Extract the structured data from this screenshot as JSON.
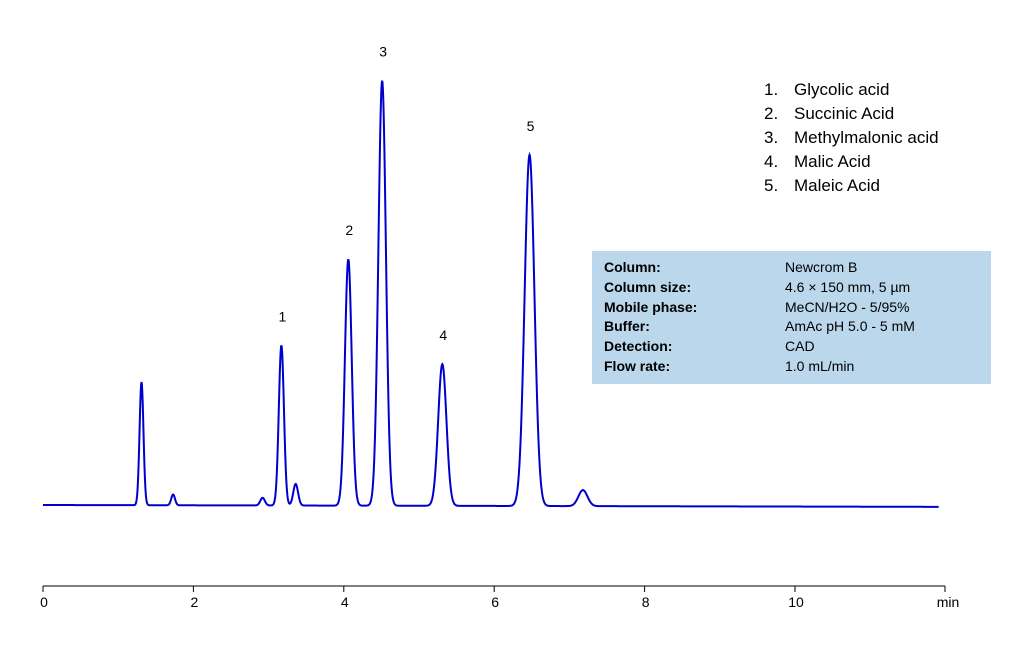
{
  "chart_data": {
    "type": "line",
    "xlabel": "min",
    "xlim": [
      0,
      12
    ],
    "x_ticks": [
      0,
      2,
      4,
      6,
      8,
      10
    ],
    "x_tick_labels": [
      "0",
      "2",
      "4",
      "6",
      "8",
      "10"
    ],
    "ylim": [
      0,
      1
    ],
    "grid": false,
    "legend_position": "top-right",
    "line_color": "#0000cc",
    "info_box_color": "#bad7ec",
    "baseline": 0.0,
    "drift_end": -0.006,
    "peaks": [
      {
        "rt": 1.31,
        "height": 0.4,
        "sigma": 0.026,
        "label": ""
      },
      {
        "rt": 1.73,
        "height": 0.035,
        "sigma": 0.025,
        "label": ""
      },
      {
        "rt": 2.92,
        "height": 0.025,
        "sigma": 0.03,
        "label": ""
      },
      {
        "rt": 3.17,
        "height": 0.52,
        "sigma": 0.034,
        "label": "1"
      },
      {
        "rt": 3.36,
        "height": 0.07,
        "sigma": 0.032,
        "label": ""
      },
      {
        "rt": 4.06,
        "height": 0.8,
        "sigma": 0.045,
        "label": "2"
      },
      {
        "rt": 4.51,
        "height": 1.38,
        "sigma": 0.05,
        "label": "3"
      },
      {
        "rt": 5.31,
        "height": 0.46,
        "sigma": 0.055,
        "label": "4"
      },
      {
        "rt": 6.47,
        "height": 1.14,
        "sigma": 0.065,
        "label": "5"
      },
      {
        "rt": 7.18,
        "height": 0.052,
        "sigma": 0.06,
        "label": ""
      }
    ],
    "compounds": [
      {
        "num": "1.",
        "name": "Glycolic acid"
      },
      {
        "num": "2.",
        "name": "Succinic Acid"
      },
      {
        "num": "3.",
        "name": "Methylmalonic acid"
      },
      {
        "num": "4.",
        "name": "Malic Acid"
      },
      {
        "num": "5.",
        "name": "Maleic Acid"
      }
    ]
  },
  "conditions": [
    {
      "key": "Column:",
      "value": "Newcrom B"
    },
    {
      "key": "Column size:",
      "value": "4.6 × 150 mm, 5 µm"
    },
    {
      "key": "Mobile phase:",
      "value": "MeCN/H2O - 5/95%"
    },
    {
      "key": "Buffer:",
      "value": "AmAc  pH 5.0 - 5 mM"
    },
    {
      "key": "Detection:",
      "value": "CAD"
    },
    {
      "key": "Flow rate:",
      "value": "1.0 mL/min"
    }
  ]
}
